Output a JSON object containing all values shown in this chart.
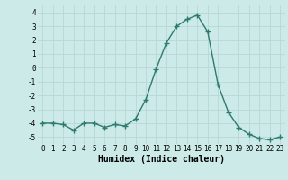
{
  "x": [
    0,
    1,
    2,
    3,
    4,
    5,
    6,
    7,
    8,
    9,
    10,
    11,
    12,
    13,
    14,
    15,
    16,
    17,
    18,
    19,
    20,
    21,
    22,
    23
  ],
  "y": [
    -4.0,
    -4.0,
    -4.1,
    -4.5,
    -4.0,
    -4.0,
    -4.3,
    -4.1,
    -4.2,
    -3.7,
    -2.3,
    -0.1,
    1.8,
    3.0,
    3.5,
    3.8,
    2.6,
    -1.2,
    -3.2,
    -4.3,
    -4.8,
    -5.1,
    -5.2,
    -5.0
  ],
  "xlabel": "Humidex (Indice chaleur)",
  "ylim": [
    -5.5,
    4.5
  ],
  "xlim": [
    -0.5,
    23.5
  ],
  "yticks": [
    -5,
    -4,
    -3,
    -2,
    -1,
    0,
    1,
    2,
    3,
    4
  ],
  "xticks": [
    0,
    1,
    2,
    3,
    4,
    5,
    6,
    7,
    8,
    9,
    10,
    11,
    12,
    13,
    14,
    15,
    16,
    17,
    18,
    19,
    20,
    21,
    22,
    23
  ],
  "line_color": "#2d7a6e",
  "marker": "+",
  "marker_size": 4.0,
  "marker_lw": 1.0,
  "bg_color": "#cceae7",
  "grid_color": "#b8d8d4",
  "xlabel_fontsize": 7,
  "tick_fontsize": 5.5
}
